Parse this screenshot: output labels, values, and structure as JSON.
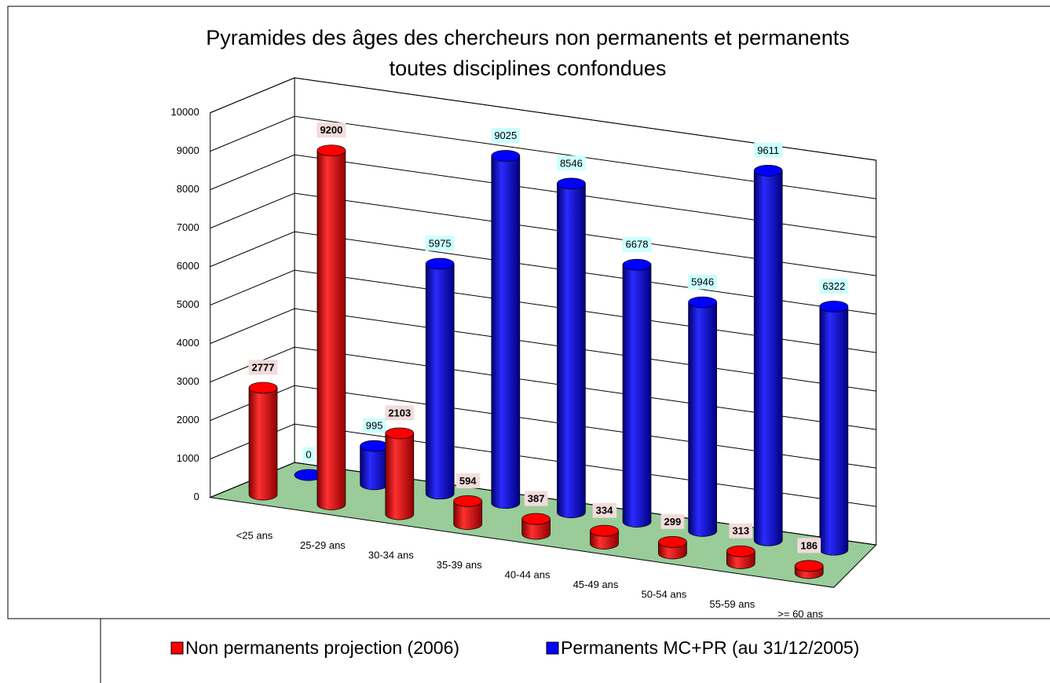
{
  "chart_data": {
    "type": "bar3d",
    "title": [
      "Pyramides des âges des chercheurs non permanents et permanents",
      "toutes disciplines confondues"
    ],
    "categories": [
      "<25 ans",
      "25-29 ans",
      "30-34 ans",
      "35-39 ans",
      "40-44 ans",
      "45-49 ans",
      "50-54 ans",
      "55-59 ans",
      ">= 60 ans"
    ],
    "series": [
      {
        "name": "Non permanents projection (2006)",
        "color": "#ff0000",
        "values": [
          2777,
          9200,
          2103,
          594,
          387,
          334,
          299,
          313,
          186
        ]
      },
      {
        "name": "Permanents MC+PR (au 31/12/2005)",
        "color": "#0000ff",
        "values": [
          0,
          995,
          5975,
          9025,
          8546,
          6678,
          5946,
          9611,
          6322
        ]
      }
    ],
    "ylim": [
      0,
      10000
    ],
    "yticks": [
      0,
      1000,
      2000,
      3000,
      4000,
      5000,
      6000,
      7000,
      8000,
      9000,
      10000
    ],
    "grid": true,
    "legend": "bottom"
  }
}
